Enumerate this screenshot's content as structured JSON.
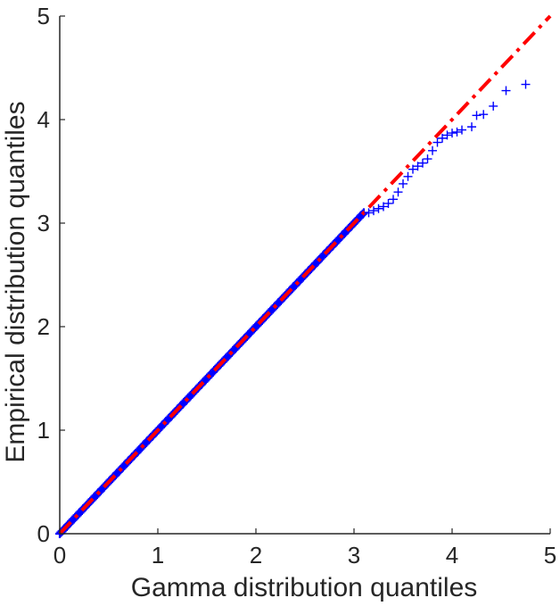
{
  "chart_data": {
    "type": "scatter",
    "title": "",
    "xlabel": "Gamma distribution quantiles",
    "ylabel": "Empirical distribution quantiles",
    "xlim": [
      0,
      5
    ],
    "ylim": [
      0,
      5
    ],
    "x_ticks": [
      "0",
      "1",
      "2",
      "3",
      "4",
      "5"
    ],
    "y_ticks": [
      "0",
      "1",
      "2",
      "3",
      "4",
      "5"
    ],
    "grid": false,
    "legend": "none",
    "reference_line": {
      "x": [
        0,
        5
      ],
      "y": [
        0,
        5
      ],
      "color": "#ff0000",
      "style": "dash-dot"
    },
    "series": [
      {
        "marker": "plus",
        "color": "#0000ff",
        "dense_range": {
          "x": [
            0,
            3.1
          ],
          "y": [
            0,
            3.1
          ]
        },
        "tail_points": [
          [
            3.15,
            3.1
          ],
          [
            3.2,
            3.12
          ],
          [
            3.25,
            3.14
          ],
          [
            3.3,
            3.16
          ],
          [
            3.35,
            3.19
          ],
          [
            3.4,
            3.23
          ],
          [
            3.45,
            3.3
          ],
          [
            3.5,
            3.38
          ],
          [
            3.55,
            3.45
          ],
          [
            3.6,
            3.52
          ],
          [
            3.65,
            3.55
          ],
          [
            3.7,
            3.58
          ],
          [
            3.75,
            3.62
          ],
          [
            3.8,
            3.7
          ],
          [
            3.85,
            3.78
          ],
          [
            3.9,
            3.82
          ],
          [
            3.95,
            3.85
          ],
          [
            4.0,
            3.87
          ],
          [
            4.05,
            3.88
          ],
          [
            4.1,
            3.9
          ],
          [
            4.2,
            3.93
          ],
          [
            4.25,
            4.04
          ],
          [
            4.32,
            4.05
          ],
          [
            4.42,
            4.13
          ],
          [
            4.55,
            4.28
          ],
          [
            4.75,
            4.34
          ]
        ]
      }
    ]
  }
}
